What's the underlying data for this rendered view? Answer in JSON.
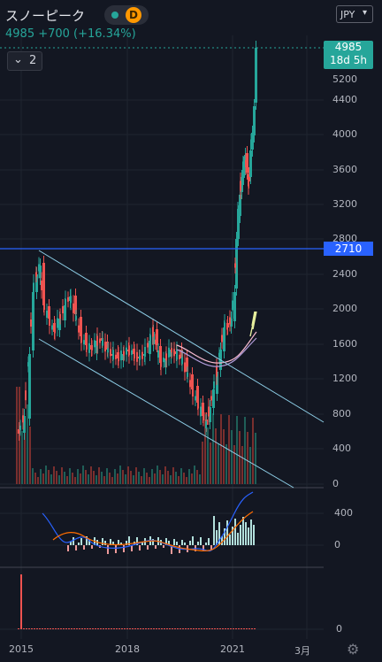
{
  "header": {
    "title": "スノーピーク",
    "timeframe": "D",
    "price_change": "4985 +700 (+16.34%)",
    "indicators_count": "2",
    "currency": "JPY"
  },
  "price_axis": {
    "last_price": "4985",
    "countdown": "18d 5h",
    "hline_value": "2710",
    "main_ticks": [
      "5200",
      "4400",
      "4000",
      "3600",
      "3200",
      "2800",
      "2400",
      "2000",
      "1600",
      "1200",
      "800",
      "400",
      "0"
    ],
    "macd_ticks": [
      "400",
      "0"
    ],
    "vol_ticks": [
      "0"
    ]
  },
  "time_axis": [
    "2015",
    "2018",
    "2021",
    "3月"
  ],
  "colors": {
    "background": "#131722",
    "up": "#26a69a",
    "down": "#ef5350",
    "hline": "#2962ff",
    "channel": "#8ecfe8",
    "ma_short": "#b39ddb",
    "ma_long": "#f8bbd0"
  },
  "icons": [
    "chevron-down-icon",
    "gear-icon"
  ]
}
